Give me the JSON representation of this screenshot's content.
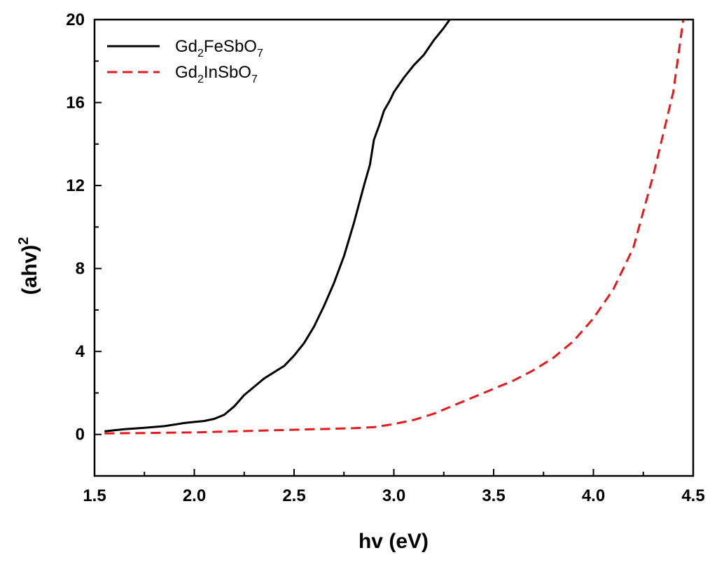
{
  "chart_data": {
    "type": "line",
    "xlabel": "hv (eV)",
    "ylabel": "(ahv)",
    "ylabel_superscript": "2",
    "xlim": [
      1.5,
      4.5
    ],
    "ylim": [
      -2,
      20
    ],
    "x_ticks": [
      1.5,
      2.0,
      2.5,
      3.0,
      3.5,
      4.0,
      4.5
    ],
    "x_tick_labels": [
      "1.5",
      "2.0",
      "2.5",
      "3.0",
      "3.5",
      "4.0",
      "4.5"
    ],
    "y_ticks": [
      0,
      4,
      8,
      12,
      16,
      20
    ],
    "y_tick_labels": [
      "0",
      "4",
      "8",
      "12",
      "16",
      "20"
    ],
    "legend_position": "top-left",
    "series": [
      {
        "name": "Gd2FeSbO7",
        "label_parts": [
          "Gd",
          "2",
          "FeSbO",
          "7"
        ],
        "color": "#000000",
        "dash": "solid",
        "x": [
          1.55,
          1.65,
          1.75,
          1.85,
          1.95,
          2.0,
          2.05,
          2.1,
          2.15,
          2.2,
          2.25,
          2.3,
          2.35,
          2.4,
          2.45,
          2.5,
          2.55,
          2.6,
          2.65,
          2.7,
          2.75,
          2.8,
          2.85,
          2.88,
          2.9,
          2.93,
          2.95,
          2.98,
          3.0,
          3.05,
          3.1,
          3.15,
          3.2,
          3.25,
          3.28
        ],
        "y": [
          0.15,
          0.25,
          0.32,
          0.4,
          0.55,
          0.6,
          0.65,
          0.75,
          0.95,
          1.35,
          1.9,
          2.3,
          2.7,
          3.0,
          3.3,
          3.8,
          4.4,
          5.2,
          6.2,
          7.3,
          8.6,
          10.2,
          12.0,
          13.0,
          14.2,
          15.0,
          15.6,
          16.1,
          16.5,
          17.2,
          17.8,
          18.3,
          19.0,
          19.6,
          20.0
        ]
      },
      {
        "name": "Gd2InSbO7",
        "label_parts": [
          "Gd",
          "2",
          "InSbO",
          "7"
        ],
        "color": "#e41a1c",
        "dash": "dashed",
        "x": [
          1.55,
          1.75,
          2.0,
          2.2,
          2.4,
          2.6,
          2.8,
          2.9,
          3.0,
          3.1,
          3.2,
          3.3,
          3.4,
          3.5,
          3.6,
          3.7,
          3.8,
          3.9,
          4.0,
          4.1,
          4.2,
          4.3,
          4.4,
          4.45
        ],
        "y": [
          0.05,
          0.07,
          0.1,
          0.15,
          0.2,
          0.25,
          0.3,
          0.35,
          0.5,
          0.7,
          1.0,
          1.4,
          1.8,
          2.2,
          2.6,
          3.1,
          3.7,
          4.5,
          5.6,
          7.0,
          9.0,
          12.5,
          16.5,
          20.0
        ]
      }
    ]
  }
}
